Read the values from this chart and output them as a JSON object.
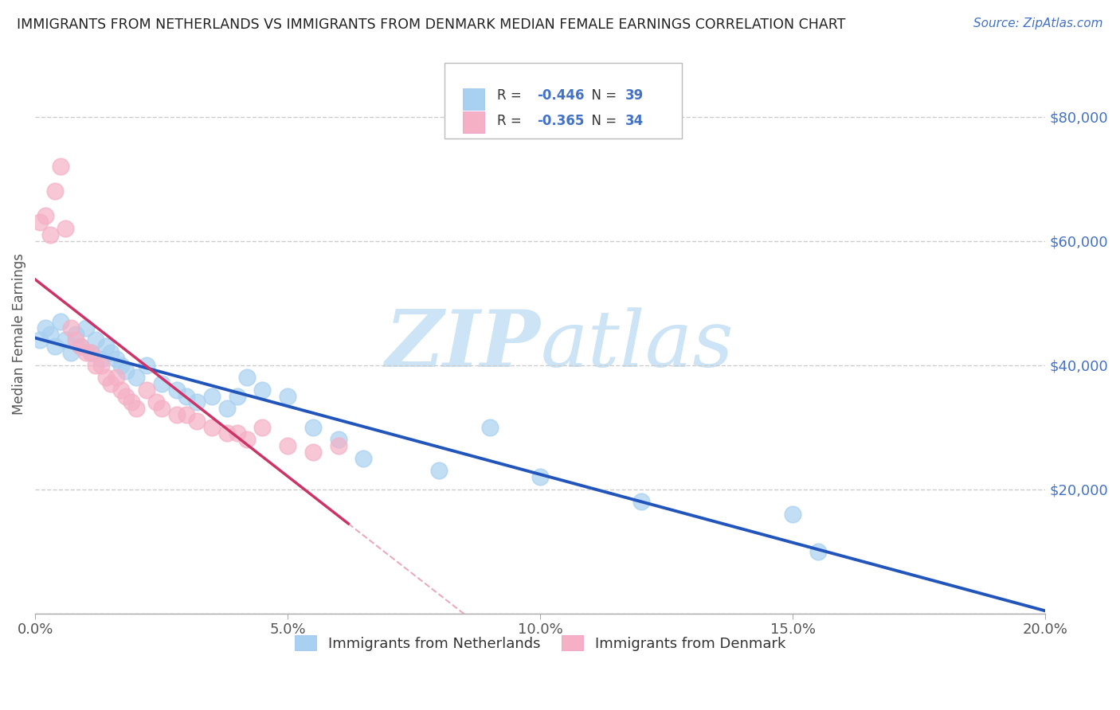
{
  "title": "IMMIGRANTS FROM NETHERLANDS VS IMMIGRANTS FROM DENMARK MEDIAN FEMALE EARNINGS CORRELATION CHART",
  "source": "Source: ZipAtlas.com",
  "ylabel": "Median Female Earnings",
  "xlim": [
    0.0,
    0.2
  ],
  "ylim": [
    0,
    90000
  ],
  "yticks": [
    0,
    20000,
    40000,
    60000,
    80000
  ],
  "ytick_labels": [
    "",
    "$20,000",
    "$40,000",
    "$60,000",
    "$80,000"
  ],
  "xticks": [
    0.0,
    0.05,
    0.1,
    0.15,
    0.2
  ],
  "xtick_labels": [
    "0.0%",
    "5.0%",
    "10.0%",
    "15.0%",
    "20.0%"
  ],
  "legend_labels": [
    "Immigrants from Netherlands",
    "Immigrants from Denmark"
  ],
  "netherlands_R": -0.446,
  "netherlands_N": 39,
  "denmark_R": -0.365,
  "denmark_N": 34,
  "color_netherlands": "#a8d0f0",
  "color_denmark": "#f5b0c5",
  "color_trend_netherlands": "#2255bb",
  "color_trend_denmark": "#cc3366",
  "color_dash": "#e8a0bc",
  "watermark_color": "#cce4f5",
  "nl_x": [
    0.001,
    0.002,
    0.003,
    0.004,
    0.005,
    0.006,
    0.007,
    0.008,
    0.009,
    0.01,
    0.011,
    0.012,
    0.013,
    0.014,
    0.015,
    0.016,
    0.017,
    0.018,
    0.02,
    0.022,
    0.025,
    0.028,
    0.03,
    0.032,
    0.035,
    0.038,
    0.04,
    0.042,
    0.045,
    0.05,
    0.055,
    0.06,
    0.065,
    0.08,
    0.09,
    0.1,
    0.12,
    0.15,
    0.155
  ],
  "nl_y": [
    44000,
    46000,
    45000,
    43000,
    47000,
    44000,
    42000,
    45000,
    43000,
    46000,
    42000,
    44000,
    41000,
    43000,
    42000,
    41000,
    40000,
    39000,
    38000,
    40000,
    37000,
    36000,
    35000,
    34000,
    35000,
    33000,
    35000,
    38000,
    36000,
    35000,
    30000,
    28000,
    25000,
    23000,
    30000,
    22000,
    18000,
    16000,
    10000
  ],
  "dk_x": [
    0.001,
    0.002,
    0.003,
    0.004,
    0.005,
    0.006,
    0.007,
    0.008,
    0.009,
    0.01,
    0.011,
    0.012,
    0.013,
    0.014,
    0.015,
    0.016,
    0.017,
    0.018,
    0.019,
    0.02,
    0.022,
    0.024,
    0.025,
    0.028,
    0.03,
    0.032,
    0.035,
    0.038,
    0.04,
    0.042,
    0.045,
    0.05,
    0.055,
    0.06
  ],
  "dk_y": [
    63000,
    64000,
    61000,
    68000,
    72000,
    62000,
    46000,
    44000,
    43000,
    42000,
    42000,
    40000,
    40000,
    38000,
    37000,
    38000,
    36000,
    35000,
    34000,
    33000,
    36000,
    34000,
    33000,
    32000,
    32000,
    31000,
    30000,
    29000,
    29000,
    28000,
    30000,
    27000,
    26000,
    27000
  ]
}
